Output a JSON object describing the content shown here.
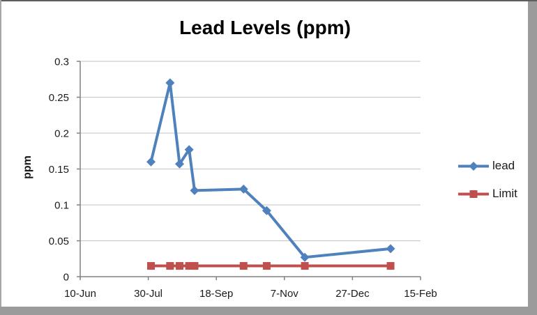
{
  "chart_data": {
    "type": "line",
    "title": "Lead Levels (ppm)",
    "xlabel": "",
    "ylabel": "ppm",
    "ylim": [
      0,
      0.3
    ],
    "y_ticks": {
      "values": [
        0,
        0.05,
        0.1,
        0.15,
        0.2,
        0.25,
        0.3
      ],
      "labels": [
        "0",
        "0.05",
        "0.1",
        "0.15",
        "0.2",
        "0.25",
        "0.3"
      ]
    },
    "x_ticks": {
      "days_from_start": [
        0,
        50,
        100,
        150,
        200,
        250
      ],
      "labels": [
        "10-Jun",
        "30-Jul",
        "18-Sep",
        "7-Nov",
        "27-Dec",
        "15-Feb"
      ]
    },
    "grid": "horizontal",
    "legend_position": "right",
    "series": [
      {
        "name": "lead",
        "color": "#4F81BD",
        "marker": "diamond",
        "x_days": [
          52,
          66,
          73,
          80,
          84,
          120,
          137,
          165,
          228
        ],
        "x_dates_est": [
          "1-Aug",
          "15-Aug",
          "22-Aug",
          "29-Aug",
          "2-Sep",
          "8-Oct",
          "25-Oct",
          "22-Nov",
          "24-Jan"
        ],
        "values": [
          0.16,
          0.27,
          0.157,
          0.177,
          0.12,
          0.122,
          0.092,
          0.027,
          0.039
        ]
      },
      {
        "name": "Limit",
        "color": "#C0504D",
        "marker": "square",
        "x_days": [
          52,
          66,
          73,
          80,
          84,
          120,
          137,
          165,
          228
        ],
        "x_dates_est": [
          "1-Aug",
          "15-Aug",
          "22-Aug",
          "29-Aug",
          "2-Sep",
          "8-Oct",
          "25-Oct",
          "22-Nov",
          "24-Jan"
        ],
        "values": [
          0.015,
          0.015,
          0.015,
          0.015,
          0.015,
          0.015,
          0.015,
          0.015,
          0.015
        ]
      }
    ],
    "style": {
      "axis_color": "#808080",
      "gridline_color": "#C3C3C3",
      "tick_label_color": "#1a1a1a",
      "frame_shadow_color": "#9b9b9b",
      "background": "#ffffff"
    }
  }
}
